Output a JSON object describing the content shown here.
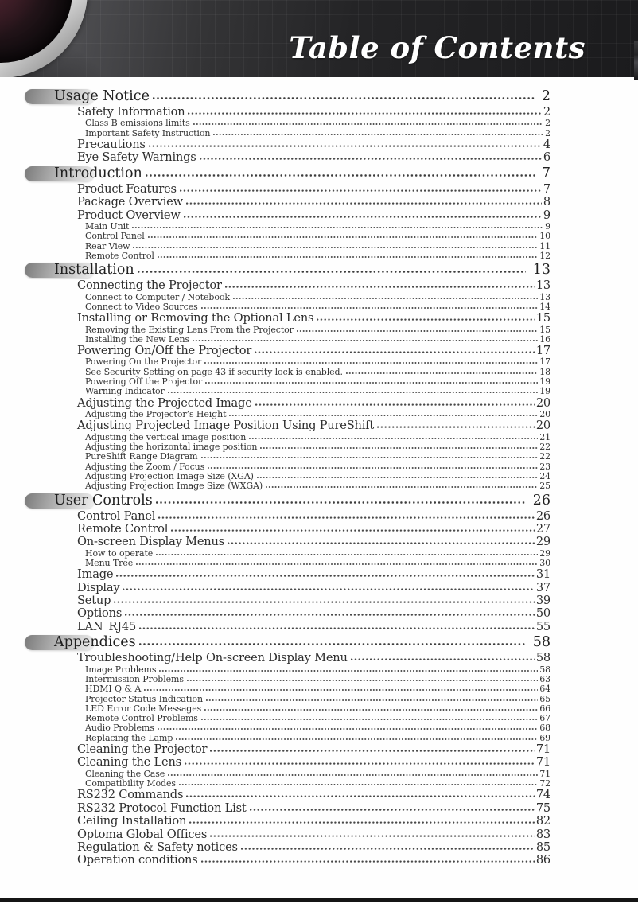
{
  "header": {
    "title": "Table of Contents",
    "image": "projector-lens-photo"
  },
  "colors": {
    "header_background": "#2a2a2c",
    "title_text": "#ffffff",
    "body_text": "#2e2e2e",
    "section_capsule": "#b8b8b8",
    "footer_bar": "#151515"
  },
  "toc": {
    "entries": [
      {
        "level": 1,
        "label": "Usage Notice",
        "page": "2"
      },
      {
        "level": 2,
        "label": "Safety Information",
        "page": "2"
      },
      {
        "level": 3,
        "label": "Class B emissions limits",
        "page": "2"
      },
      {
        "level": 3,
        "label": "Important Safety Instruction",
        "page": "2"
      },
      {
        "level": 2,
        "label": "Precautions",
        "page": "4"
      },
      {
        "level": 2,
        "label": "Eye Safety Warnings",
        "page": "6"
      },
      {
        "level": 1,
        "label": "Introduction",
        "page": "7"
      },
      {
        "level": 2,
        "label": "Product Features",
        "page": "7"
      },
      {
        "level": 2,
        "label": "Package Overview",
        "page": "8"
      },
      {
        "level": 2,
        "label": "Product Overview",
        "page": "9"
      },
      {
        "level": 3,
        "label": "Main Unit",
        "page": "9"
      },
      {
        "level": 3,
        "label": "Control Panel",
        "page": "10"
      },
      {
        "level": 3,
        "label": "Rear View",
        "page": "11"
      },
      {
        "level": 3,
        "label": "Remote Control",
        "page": "12"
      },
      {
        "level": 1,
        "label": "Installation",
        "page": "13"
      },
      {
        "level": 2,
        "label": "Connecting the Projector",
        "page": "13"
      },
      {
        "level": 3,
        "label": "Connect to Computer / Notebook",
        "page": "13"
      },
      {
        "level": 3,
        "label": "Connect to Video Sources",
        "page": "14"
      },
      {
        "level": 2,
        "label": "Installing or Removing the Optional Lens",
        "page": "15"
      },
      {
        "level": 3,
        "label": "Removing the Existing Lens From the Projector",
        "page": "15"
      },
      {
        "level": 3,
        "label": "Installing the New Lens",
        "page": "16"
      },
      {
        "level": 2,
        "label": "Powering On/Off the Projector",
        "page": "17"
      },
      {
        "level": 3,
        "label": "Powering On the Projector",
        "page": "17"
      },
      {
        "level": 3,
        "label": "See Security Setting on page 43 if security lock is enabled.",
        "page": "18"
      },
      {
        "level": 3,
        "label": "Powering Off the Projector",
        "page": "19"
      },
      {
        "level": 3,
        "label": "Warning Indicator",
        "page": "19"
      },
      {
        "level": 2,
        "label": "Adjusting the Projected Image",
        "page": "20"
      },
      {
        "level": 3,
        "label": "Adjusting the Projector’s Height",
        "page": "20"
      },
      {
        "level": 2,
        "label": "Adjusting Projected Image Position Using PureShift",
        "page": "20"
      },
      {
        "level": 3,
        "label": "Adjusting the vertical image position",
        "page": "21"
      },
      {
        "level": 3,
        "label": "Adjusting the horizontal image position",
        "page": "22"
      },
      {
        "level": 3,
        "label": "PureShift Range Diagram",
        "page": "22"
      },
      {
        "level": 3,
        "label": "Adjusting the Zoom / Focus",
        "page": "23"
      },
      {
        "level": 3,
        "label": "Adjusting Projection Image Size (XGA)",
        "page": "24"
      },
      {
        "level": 3,
        "label": "Adjusting Projection Image Size (WXGA)",
        "page": "25"
      },
      {
        "level": 1,
        "label": "User Controls",
        "page": "26"
      },
      {
        "level": 2,
        "label": "Control Panel",
        "page": "26"
      },
      {
        "level": 2,
        "label": "Remote Control",
        "page": "27"
      },
      {
        "level": 2,
        "label": "On-screen Display Menus",
        "page": "29"
      },
      {
        "level": 3,
        "label": "How to operate",
        "page": "29"
      },
      {
        "level": 3,
        "label": "Menu Tree",
        "page": "30"
      },
      {
        "level": 2,
        "label": "Image",
        "page": "31"
      },
      {
        "level": 2,
        "label": "Display",
        "page": "37"
      },
      {
        "level": 2,
        "label": "Setup",
        "page": "39"
      },
      {
        "level": 2,
        "label": "Options",
        "page": "50"
      },
      {
        "level": 2,
        "label": "LAN_RJ45",
        "page": "55"
      },
      {
        "level": 1,
        "label": "Appendices",
        "page": "58"
      },
      {
        "level": 2,
        "label": "Troubleshooting/Help On-screen Display Menu",
        "page": "58"
      },
      {
        "level": 3,
        "label": "Image Problems",
        "page": "58"
      },
      {
        "level": 3,
        "label": "Intermission Problems",
        "page": "63"
      },
      {
        "level": 3,
        "label": "HDMI Q & A",
        "page": "64"
      },
      {
        "level": 3,
        "label": "Projector Status Indication",
        "page": "65"
      },
      {
        "level": 3,
        "label": "LED Error Code Messages",
        "page": "66"
      },
      {
        "level": 3,
        "label": "Remote Control Problems",
        "page": "67"
      },
      {
        "level": 3,
        "label": "Audio Problems",
        "page": "68"
      },
      {
        "level": 3,
        "label": "Replacing the Lamp",
        "page": "69"
      },
      {
        "level": 2,
        "label": "Cleaning the Projector",
        "page": "71"
      },
      {
        "level": 2,
        "label": "Cleaning the Lens",
        "page": "71"
      },
      {
        "level": 3,
        "label": "Cleaning the Case",
        "page": "71"
      },
      {
        "level": 3,
        "label": "Compatibility Modes",
        "page": "72"
      },
      {
        "level": 2,
        "label": "RS232 Commands",
        "page": "74"
      },
      {
        "level": 2,
        "label": "RS232 Protocol Function List",
        "page": "75"
      },
      {
        "level": 2,
        "label": "Ceiling Installation",
        "page": "82"
      },
      {
        "level": 2,
        "label": "Optoma Global Offices",
        "page": "83"
      },
      {
        "level": 2,
        "label": "Regulation & Safety notices",
        "page": "85"
      },
      {
        "level": 2,
        "label": "Operation conditions",
        "page": "86"
      }
    ]
  }
}
